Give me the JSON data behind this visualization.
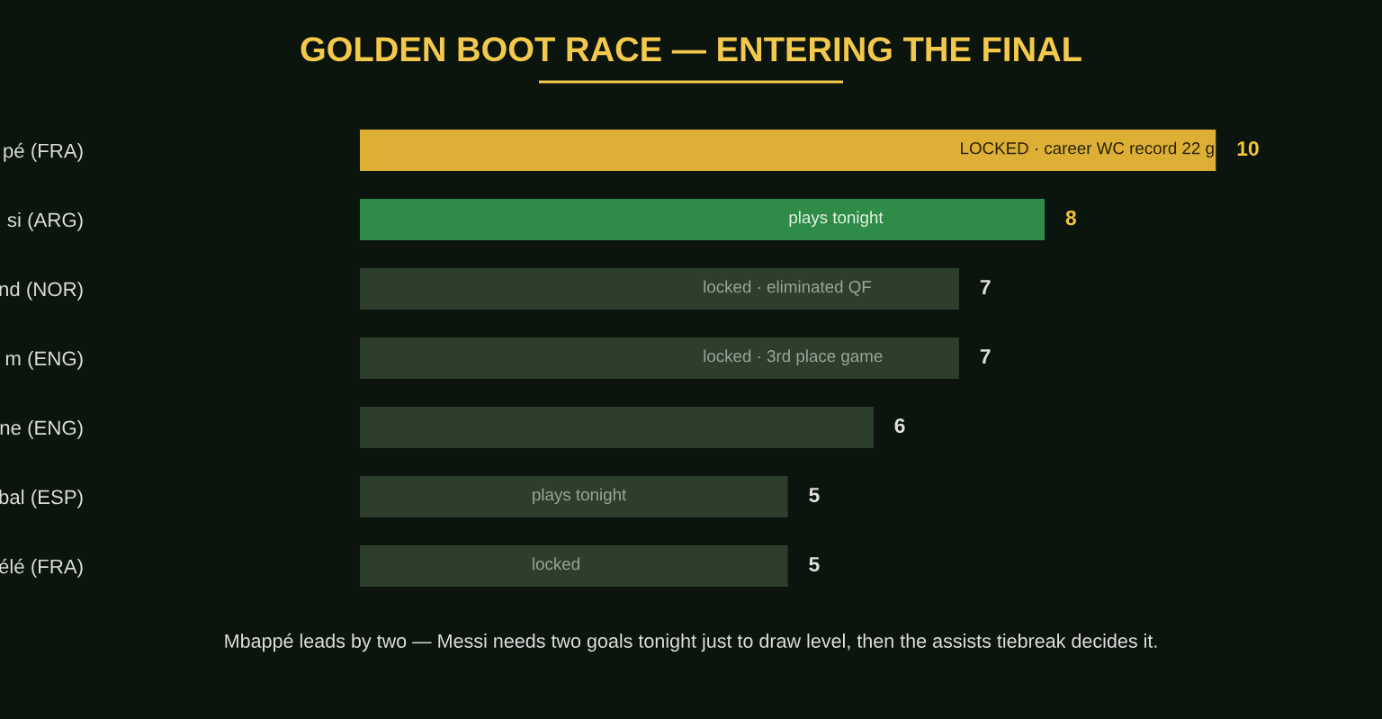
{
  "chart_data": {
    "type": "bar",
    "orientation": "horizontal",
    "title": "GOLDEN BOOT RACE — ENTERING THE FINAL",
    "categories": [
      "pé (FRA)",
      "si (ARG)",
      "nd (NOR)",
      "m (ENG)",
      "ne (ENG)",
      "bal (ESP)",
      "élé (FRA)"
    ],
    "values": [
      10,
      8,
      7,
      7,
      6,
      5,
      5
    ],
    "colors": [
      "#ddb035",
      "#2f8c48",
      "#2d3f2c",
      "#2d3f2c",
      "#2d3f2c",
      "#2d3f2c",
      "#2d3f2c"
    ],
    "data_labels": true,
    "annotations": [
      "LOCKED · career WC record 22 g",
      "plays tonight",
      "locked · eliminated QF",
      "locked · 3rd place game",
      null,
      "plays tonight",
      "locked",
      "Mbappé leads by two — Messi needs two goals tonight just to draw level, then the assists tiebreak decides it."
    ]
  }
}
